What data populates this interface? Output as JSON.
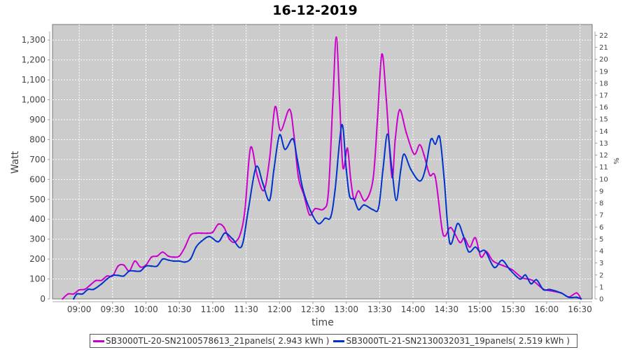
{
  "chart_data": {
    "type": "line",
    "title": "16-12-2019",
    "xlabel": "time",
    "ylabel": "Watt",
    "y2label": "%",
    "xlim": [
      "08:36",
      "16:41"
    ],
    "ylim": [
      0,
      1378
    ],
    "y2lim": [
      0,
      22.9
    ],
    "grid": true,
    "legend_position": "bottom",
    "x_ticks": [
      "09:00",
      "09:30",
      "10:00",
      "10:30",
      "11:00",
      "11:30",
      "12:00",
      "12:30",
      "13:00",
      "13:30",
      "14:00",
      "14:30",
      "15:00",
      "15:30",
      "16:00",
      "16:30"
    ],
    "y_ticks": [
      "0",
      "100",
      "200",
      "300",
      "400",
      "500",
      "600",
      "700",
      "800",
      "900",
      "1,000",
      "1,100",
      "1,200",
      "1,300"
    ],
    "y2_ticks": [
      "0",
      "1",
      "2",
      "3",
      "4",
      "5",
      "6",
      "7",
      "8",
      "9",
      "10",
      "11",
      "12",
      "13",
      "14",
      "15",
      "16",
      "17",
      "18",
      "19",
      "20",
      "21",
      "22"
    ],
    "plot_background": "#cccccc",
    "series": [
      {
        "name": "SB3000TL-20-SN2100578613_21panels( 2.943 kWh )",
        "color": "#cc00cc",
        "points": [
          [
            "08:45",
            0
          ],
          [
            "08:50",
            25
          ],
          [
            "08:55",
            25
          ],
          [
            "09:00",
            45
          ],
          [
            "09:05",
            48
          ],
          [
            "09:10",
            70
          ],
          [
            "09:15",
            92
          ],
          [
            "09:20",
            93
          ],
          [
            "09:25",
            115
          ],
          [
            "09:30",
            115
          ],
          [
            "09:35",
            165
          ],
          [
            "09:40",
            170
          ],
          [
            "09:45",
            140
          ],
          [
            "09:50",
            190
          ],
          [
            "09:55",
            160
          ],
          [
            "10:00",
            170
          ],
          [
            "10:05",
            210
          ],
          [
            "10:10",
            215
          ],
          [
            "10:15",
            235
          ],
          [
            "10:20",
            215
          ],
          [
            "10:25",
            210
          ],
          [
            "10:30",
            215
          ],
          [
            "10:35",
            260
          ],
          [
            "10:40",
            320
          ],
          [
            "10:45",
            330
          ],
          [
            "10:50",
            330
          ],
          [
            "10:55",
            330
          ],
          [
            "11:00",
            335
          ],
          [
            "11:05",
            375
          ],
          [
            "11:10",
            360
          ],
          [
            "11:15",
            300
          ],
          [
            "11:20",
            285
          ],
          [
            "11:25",
            330
          ],
          [
            "11:29",
            450
          ],
          [
            "11:34",
            760
          ],
          [
            "11:40",
            620
          ],
          [
            "11:46",
            545
          ],
          [
            "11:51",
            700
          ],
          [
            "11:56",
            964
          ],
          [
            "12:01",
            845
          ],
          [
            "12:09",
            952
          ],
          [
            "12:13",
            820
          ],
          [
            "12:17",
            611
          ],
          [
            "12:22",
            520
          ],
          [
            "12:27",
            422
          ],
          [
            "12:32",
            453
          ],
          [
            "12:40",
            453
          ],
          [
            "12:44",
            540
          ],
          [
            "12:48",
            1000
          ],
          [
            "12:51",
            1314
          ],
          [
            "12:54",
            1000
          ],
          [
            "12:57",
            660
          ],
          [
            "13:01",
            757
          ],
          [
            "13:04",
            600
          ],
          [
            "13:07",
            499
          ],
          [
            "13:11",
            542
          ],
          [
            "13:17",
            493
          ],
          [
            "13:24",
            598
          ],
          [
            "13:28",
            900
          ],
          [
            "13:32",
            1229
          ],
          [
            "13:36",
            1000
          ],
          [
            "13:41",
            612
          ],
          [
            "13:44",
            800
          ],
          [
            "13:48",
            950
          ],
          [
            "13:54",
            833
          ],
          [
            "14:01",
            727
          ],
          [
            "14:06",
            774
          ],
          [
            "14:10",
            720
          ],
          [
            "14:15",
            622
          ],
          [
            "14:20",
            611
          ],
          [
            "14:26",
            352
          ],
          [
            "14:29",
            317
          ],
          [
            "14:34",
            358
          ],
          [
            "14:42",
            284
          ],
          [
            "14:46",
            307
          ],
          [
            "14:51",
            260
          ],
          [
            "14:56",
            307
          ],
          [
            "15:01",
            211
          ],
          [
            "15:06",
            237
          ],
          [
            "15:12",
            190
          ],
          [
            "15:21",
            167
          ],
          [
            "15:29",
            147
          ],
          [
            "15:38",
            106
          ],
          [
            "15:47",
            94
          ],
          [
            "15:57",
            49
          ],
          [
            "16:03",
            41
          ],
          [
            "16:13",
            30
          ],
          [
            "16:20",
            10
          ],
          [
            "16:27",
            30
          ],
          [
            "16:31",
            0
          ]
        ]
      },
      {
        "name": "SB3000TL-21-SN2130032031_19panels( 2.519 kWh )",
        "color": "#0033cc",
        "points": [
          [
            "08:55",
            0
          ],
          [
            "08:58",
            25
          ],
          [
            "09:03",
            25
          ],
          [
            "09:08",
            48
          ],
          [
            "09:13",
            48
          ],
          [
            "09:20",
            75
          ],
          [
            "09:25",
            100
          ],
          [
            "09:30",
            118
          ],
          [
            "09:35",
            118
          ],
          [
            "09:40",
            115
          ],
          [
            "09:45",
            140
          ],
          [
            "09:50",
            140
          ],
          [
            "09:55",
            140
          ],
          [
            "10:00",
            165
          ],
          [
            "10:05",
            165
          ],
          [
            "10:10",
            165
          ],
          [
            "10:15",
            200
          ],
          [
            "10:20",
            195
          ],
          [
            "10:25",
            190
          ],
          [
            "10:30",
            190
          ],
          [
            "10:35",
            185
          ],
          [
            "10:40",
            200
          ],
          [
            "10:45",
            260
          ],
          [
            "10:50",
            290
          ],
          [
            "10:57",
            313
          ],
          [
            "11:05",
            287
          ],
          [
            "11:11",
            331
          ],
          [
            "11:18",
            300
          ],
          [
            "11:26",
            264
          ],
          [
            "11:32",
            450
          ],
          [
            "11:39",
            663
          ],
          [
            "11:45",
            580
          ],
          [
            "11:51",
            495
          ],
          [
            "11:55",
            650
          ],
          [
            "12:00",
            823
          ],
          [
            "12:05",
            751
          ],
          [
            "12:12",
            804
          ],
          [
            "12:16",
            700
          ],
          [
            "12:21",
            551
          ],
          [
            "12:28",
            440
          ],
          [
            "12:35",
            378
          ],
          [
            "12:41",
            405
          ],
          [
            "12:46",
            411
          ],
          [
            "12:50",
            550
          ],
          [
            "12:56",
            874
          ],
          [
            "13:00",
            650
          ],
          [
            "13:03",
            516
          ],
          [
            "13:07",
            500
          ],
          [
            "13:11",
            448
          ],
          [
            "13:16",
            472
          ],
          [
            "13:24",
            448
          ],
          [
            "13:29",
            457
          ],
          [
            "13:33",
            650
          ],
          [
            "13:37",
            827
          ],
          [
            "13:41",
            650
          ],
          [
            "13:45",
            495
          ],
          [
            "13:49",
            650
          ],
          [
            "13:52",
            727
          ],
          [
            "13:58",
            650
          ],
          [
            "14:06",
            592
          ],
          [
            "14:11",
            650
          ],
          [
            "14:16",
            800
          ],
          [
            "14:20",
            777
          ],
          [
            "14:24",
            812
          ],
          [
            "14:28",
            600
          ],
          [
            "14:33",
            281
          ],
          [
            "14:40",
            378
          ],
          [
            "14:45",
            320
          ],
          [
            "14:50",
            237
          ],
          [
            "14:56",
            260
          ],
          [
            "15:00",
            237
          ],
          [
            "15:05",
            240
          ],
          [
            "15:13",
            158
          ],
          [
            "15:20",
            194
          ],
          [
            "15:27",
            147
          ],
          [
            "15:36",
            100
          ],
          [
            "15:41",
            120
          ],
          [
            "15:46",
            76
          ],
          [
            "15:51",
            96
          ],
          [
            "15:57",
            47
          ],
          [
            "16:03",
            47
          ],
          [
            "16:13",
            30
          ],
          [
            "16:20",
            8
          ],
          [
            "16:27",
            8
          ],
          [
            "16:31",
            0
          ]
        ]
      }
    ]
  }
}
